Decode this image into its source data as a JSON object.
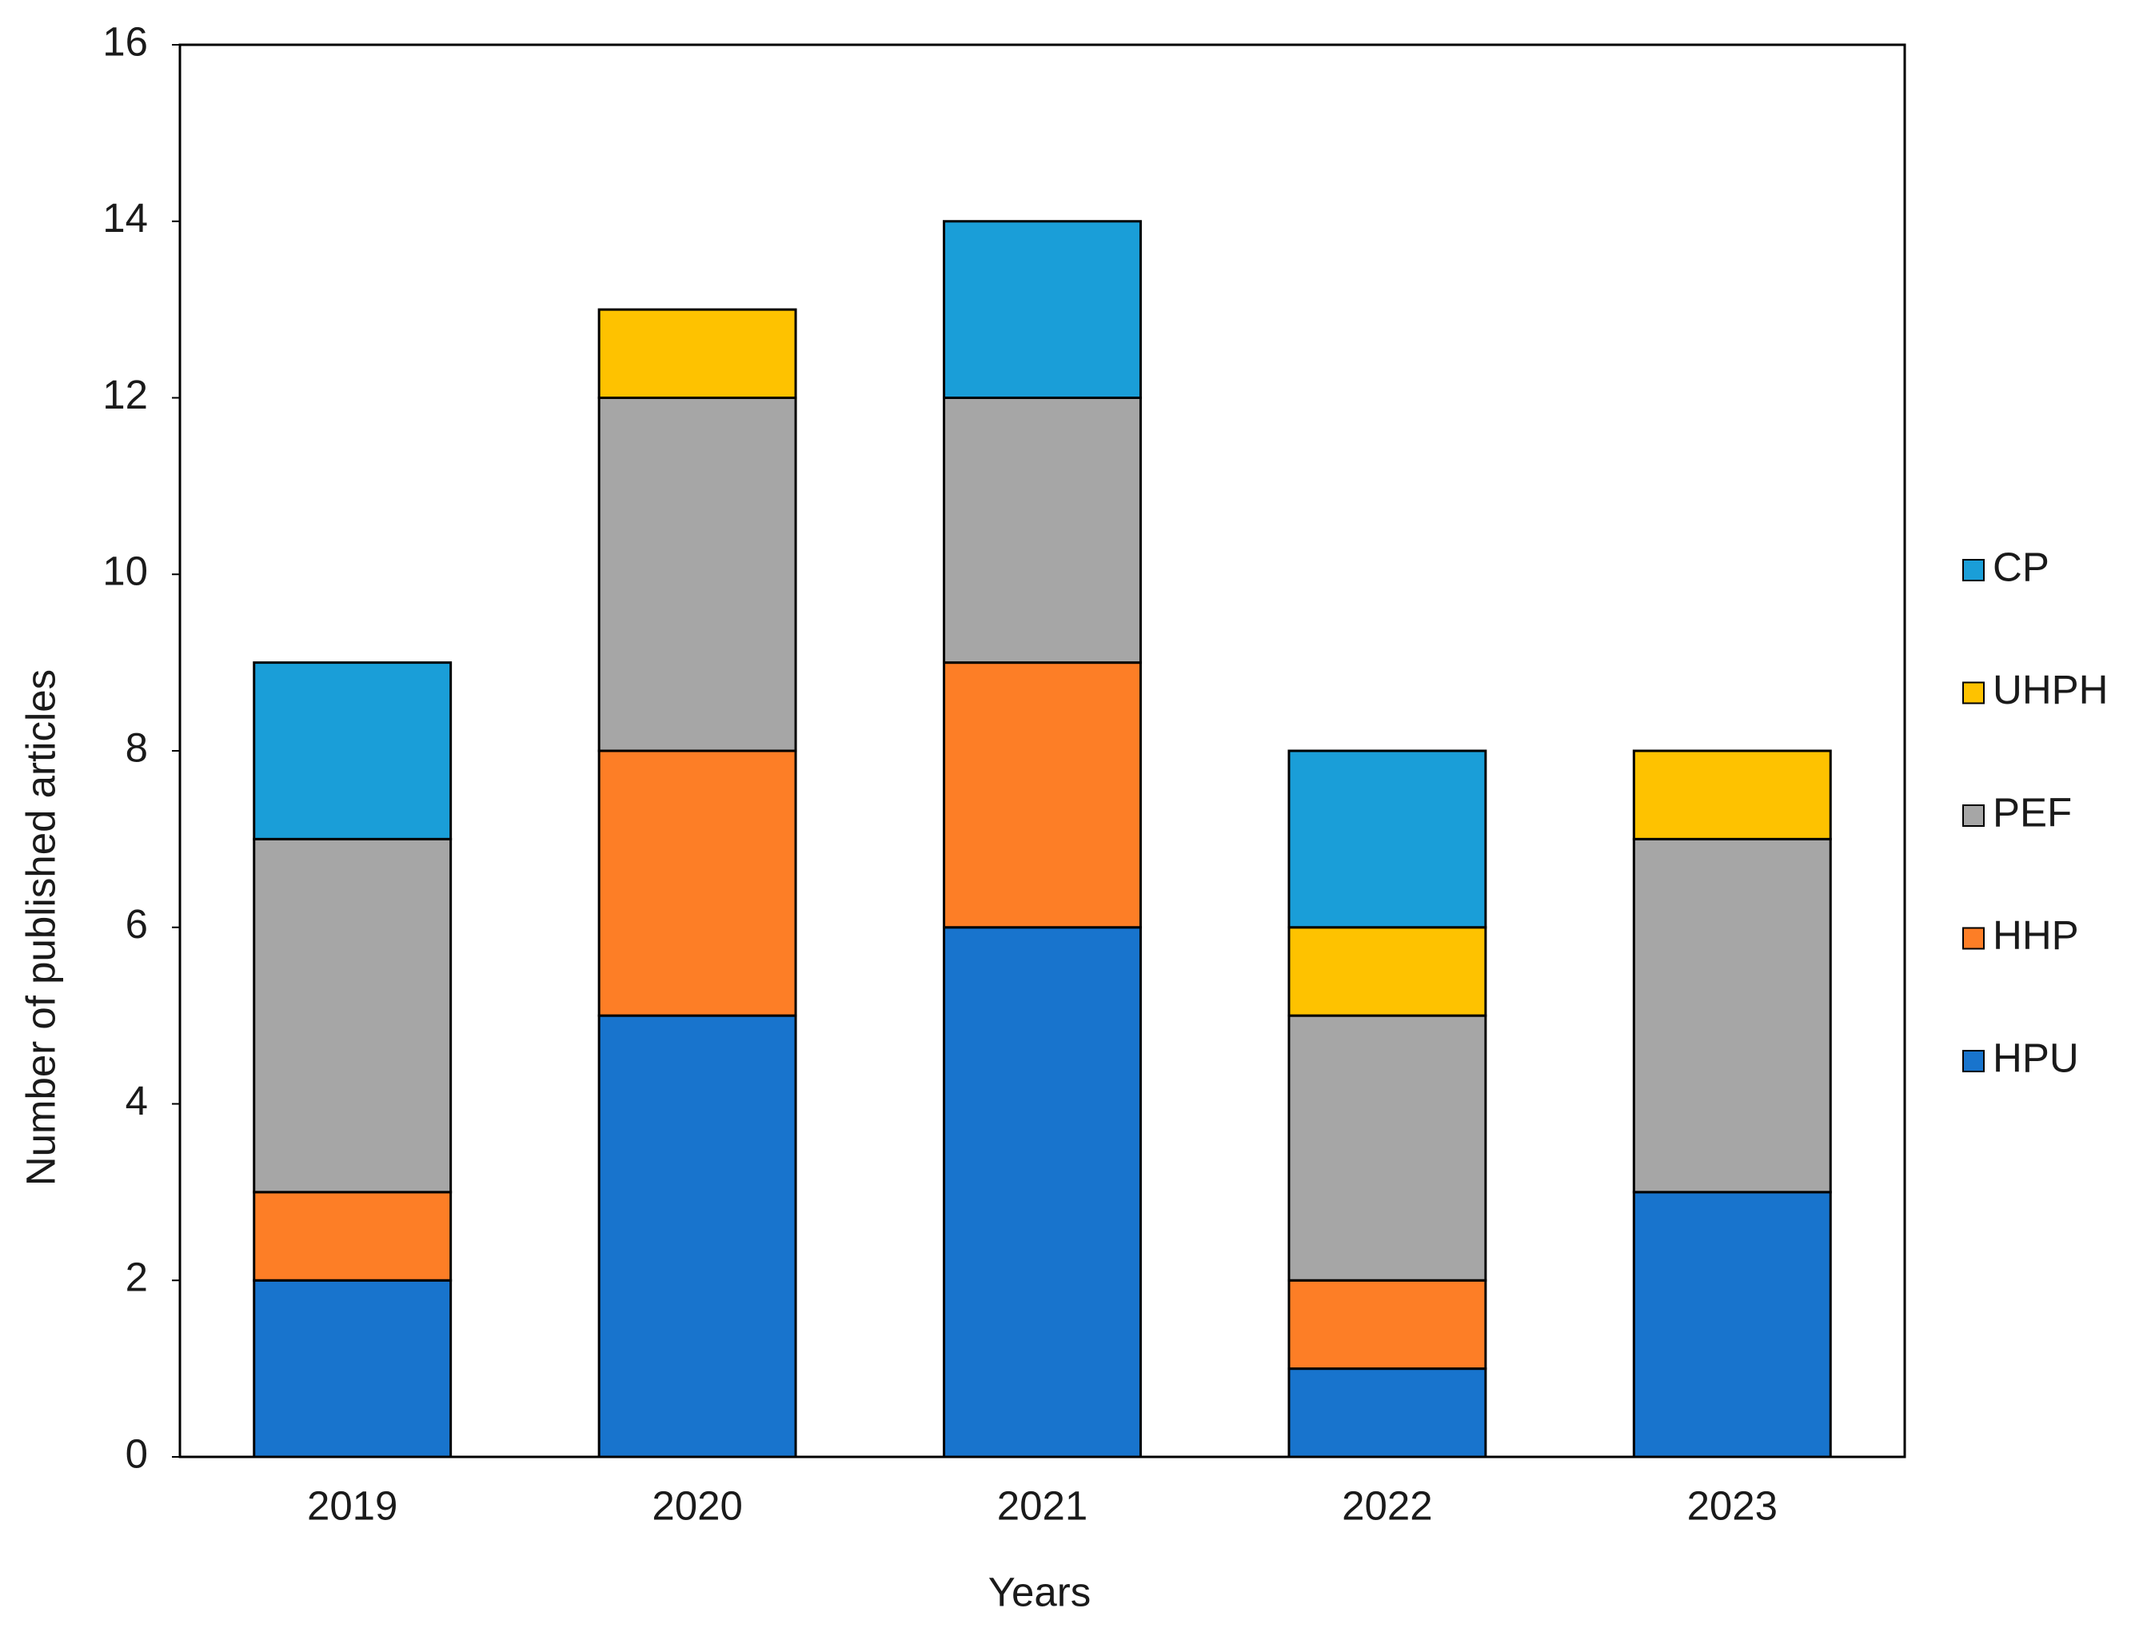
{
  "chart_data": {
    "type": "stacked_bar",
    "x_label": "Years",
    "y_label": "Number of published articles",
    "categories": [
      "2019",
      "2020",
      "2021",
      "2022",
      "2023"
    ],
    "series": [
      {
        "name": "HPU",
        "color": "#1874cd",
        "values": [
          2,
          5,
          6,
          1,
          3
        ]
      },
      {
        "name": "HHP",
        "color": "#fd7e26",
        "values": [
          1,
          3,
          3,
          1,
          0
        ]
      },
      {
        "name": "PEF",
        "color": "#a6a6a6",
        "values": [
          4,
          4,
          3,
          3,
          4
        ]
      },
      {
        "name": "UHPH",
        "color": "#fec200",
        "values": [
          0,
          1,
          0,
          1,
          1
        ]
      },
      {
        "name": "CP",
        "color": "#1a9ed8",
        "values": [
          2,
          0,
          2,
          2,
          0
        ]
      }
    ],
    "ylim": [
      0,
      16
    ],
    "yticks": [
      0,
      2,
      4,
      6,
      8,
      10,
      12,
      14,
      16
    ],
    "legend": "right"
  }
}
